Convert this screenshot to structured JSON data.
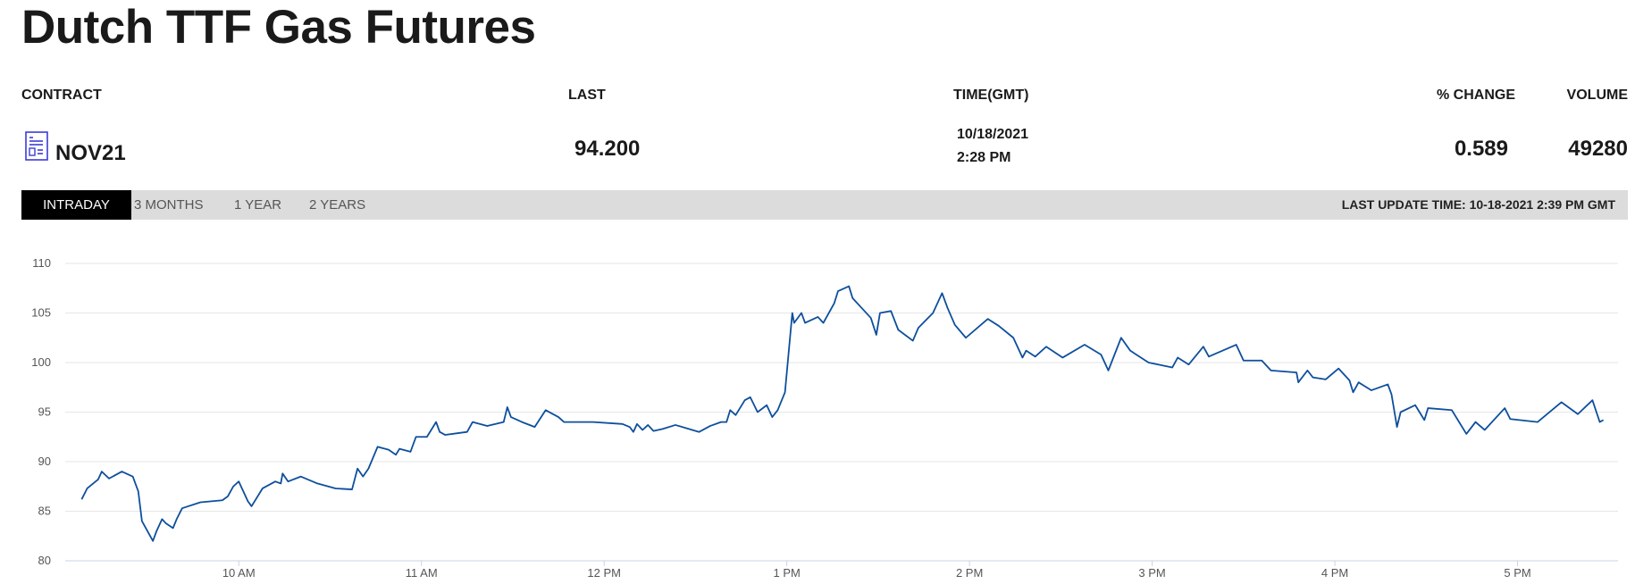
{
  "header": {
    "title": "Dutch TTF Gas Futures"
  },
  "table": {
    "columns": [
      "CONTRACT",
      "LAST",
      "TIME(GMT)",
      "% CHANGE",
      "VOLUME"
    ],
    "row": {
      "contract": "NOV21",
      "last": "94.200",
      "time": [
        "10/18/2021",
        "2:28 PM"
      ],
      "change": "0.589",
      "volume": "49280"
    }
  },
  "tabs": [
    "INTRADAY",
    "3 MONTHS",
    "1 YEAR",
    "2 YEARS"
  ],
  "last_update": "LAST UPDATE TIME: 10-18-2021 2:39 PM GMT",
  "chart_data": {
    "type": "line",
    "color": "#0d4f9c",
    "grid": true,
    "xlim": [
      9.05,
      17.55
    ],
    "ylim": [
      80,
      110
    ],
    "yticks": [
      80,
      85,
      90,
      95,
      100,
      105,
      110
    ],
    "xticks": [
      {
        "value": 10,
        "label": "10 AM"
      },
      {
        "value": 11,
        "label": "11 AM"
      },
      {
        "value": 12,
        "label": "12 PM"
      },
      {
        "value": 13,
        "label": "1 PM"
      },
      {
        "value": 14,
        "label": "2 PM"
      },
      {
        "value": 15,
        "label": "3 PM"
      },
      {
        "value": 16,
        "label": "4 PM"
      },
      {
        "value": 17,
        "label": "5 PM"
      }
    ],
    "x": [
      9.14,
      9.17,
      9.23,
      9.25,
      9.29,
      9.36,
      9.42,
      9.45,
      9.47,
      9.5,
      9.53,
      9.55,
      9.58,
      9.6,
      9.64,
      9.66,
      9.69,
      9.79,
      9.91,
      9.94,
      9.97,
      10.0,
      10.05,
      10.07,
      10.13,
      10.2,
      10.23,
      10.24,
      10.27,
      10.34,
      10.43,
      10.53,
      10.62,
      10.65,
      10.68,
      10.71,
      10.76,
      10.82,
      10.86,
      10.88,
      10.94,
      10.97,
      11.03,
      11.08,
      11.1,
      11.13,
      11.25,
      11.28,
      11.36,
      11.45,
      11.47,
      11.49,
      11.55,
      11.62,
      11.68,
      11.75,
      11.78,
      11.94,
      12.1,
      12.14,
      12.16,
      12.18,
      12.21,
      12.24,
      12.27,
      12.32,
      12.39,
      12.52,
      12.58,
      12.64,
      12.67,
      12.69,
      12.72,
      12.77,
      12.8,
      12.84,
      12.89,
      12.92,
      12.95,
      12.99,
      13.02,
      13.03,
      13.04,
      13.08,
      13.1,
      13.17,
      13.2,
      13.26,
      13.28,
      13.34,
      13.36,
      13.41,
      13.46,
      13.49,
      13.51,
      13.57,
      13.61,
      13.69,
      13.72,
      13.8,
      13.85,
      13.88,
      13.92,
      13.98,
      14.1,
      14.16,
      14.24,
      14.29,
      14.31,
      14.36,
      14.42,
      14.51,
      14.63,
      14.72,
      14.76,
      14.83,
      14.88,
      14.98,
      15.11,
      15.14,
      15.2,
      15.28,
      15.31,
      15.46,
      15.5,
      15.6,
      15.65,
      15.79,
      15.8,
      15.85,
      15.88,
      15.95,
      16.02,
      16.08,
      16.1,
      16.13,
      16.2,
      16.29,
      16.31,
      16.34,
      16.36,
      16.44,
      16.49,
      16.51,
      16.64,
      16.72,
      16.77,
      16.82,
      16.93,
      16.96,
      17.11,
      17.24,
      17.33,
      17.41,
      17.45,
      17.47
    ],
    "values": [
      86.2,
      87.3,
      88.2,
      89,
      88.3,
      89,
      88.5,
      87,
      84,
      83,
      82,
      83,
      84.2,
      83.8,
      83.3,
      84.2,
      85.3,
      85.9,
      86.1,
      86.5,
      87.5,
      88,
      86,
      85.5,
      87.3,
      88,
      87.8,
      88.8,
      88,
      88.5,
      87.8,
      87.3,
      87.2,
      89.3,
      88.5,
      89.3,
      91.5,
      91.2,
      90.7,
      91.3,
      91,
      92.5,
      92.5,
      94,
      93,
      92.7,
      93,
      94,
      93.6,
      94,
      95.5,
      94.5,
      94,
      93.5,
      95.2,
      94.5,
      94,
      94,
      93.8,
      93.5,
      93,
      93.8,
      93.2,
      93.7,
      93.1,
      93.3,
      93.7,
      93,
      93.6,
      94,
      94,
      95.2,
      94.7,
      96.2,
      96.5,
      95,
      95.7,
      94.5,
      95.2,
      97,
      103,
      105,
      104,
      105,
      104,
      104.6,
      104,
      106,
      107.2,
      107.7,
      106.5,
      105.5,
      104.5,
      102.8,
      105,
      105.2,
      103.3,
      102.2,
      103.5,
      105,
      107,
      105.5,
      103.8,
      102.5,
      104.4,
      103.7,
      102.5,
      100.5,
      101.2,
      100.6,
      101.6,
      100.5,
      101.8,
      100.8,
      99.2,
      102.5,
      101.2,
      100,
      99.5,
      100.5,
      99.8,
      101.6,
      100.6,
      101.8,
      100.2,
      100.2,
      99.2,
      99,
      98,
      99.2,
      98.5,
      98.3,
      99.4,
      98.2,
      97,
      98,
      97.2,
      97.8,
      96.8,
      93.5,
      95,
      95.7,
      94.2,
      95.4,
      95.2,
      92.8,
      94,
      93.2,
      95.4,
      94.3,
      94,
      96,
      94.8,
      96.2,
      94,
      94.2
    ]
  }
}
